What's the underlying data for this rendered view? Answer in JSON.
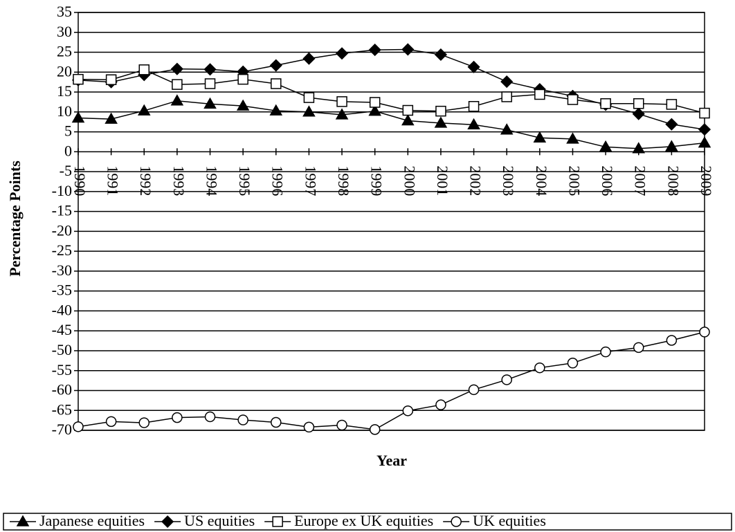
{
  "chart_data": {
    "type": "line",
    "x_label": "Year",
    "y_label": "Percentage Points",
    "categories": [
      "1990",
      "1991",
      "1992",
      "1993",
      "1994",
      "1995",
      "1996",
      "1997",
      "1998",
      "1999",
      "2000",
      "2001",
      "2002",
      "2003",
      "2004",
      "2005",
      "2006",
      "2007",
      "2008",
      "2009"
    ],
    "series": [
      {
        "name": "Japanese equities",
        "color": "#000000",
        "marker": "triangle",
        "marker_fill": "#000000",
        "values": [
          8.5,
          8.2,
          10.3,
          12.8,
          12,
          11.5,
          10.3,
          10,
          9.3,
          10.2,
          7.8,
          7.2,
          6.8,
          5.5,
          3.5,
          3.2,
          1.2,
          0.8,
          1.3,
          2.2
        ]
      },
      {
        "name": "US equities",
        "color": "#000000",
        "marker": "diamond",
        "marker_fill": "#000000",
        "values": [
          18,
          17.5,
          19.3,
          20.8,
          20.7,
          20.1,
          21.7,
          23.4,
          24.7,
          25.6,
          25.7,
          24.4,
          21.3,
          17.6,
          15.7,
          14,
          11.8,
          9.5,
          6.9,
          5.6
        ]
      },
      {
        "name": "Europe ex UK equities",
        "color": "#000000",
        "marker": "square",
        "marker_fill": "#ffffff",
        "values": [
          18.2,
          18.1,
          20.6,
          16.9,
          17.1,
          18.2,
          17.1,
          13.6,
          12.6,
          12.4,
          10.4,
          10.2,
          11.4,
          13.8,
          14.4,
          13.1,
          12.1,
          12.1,
          11.9,
          9.7
        ]
      },
      {
        "name": "UK equities",
        "color": "#000000",
        "marker": "circle",
        "marker_fill": "#ffffff",
        "values": [
          -69.1,
          -67.8,
          -68.1,
          -66.8,
          -66.6,
          -67.4,
          -68,
          -69.2,
          -68.7,
          -69.8,
          -65.1,
          -63.6,
          -59.8,
          -57.3,
          -54.3,
          -53.1,
          -50.3,
          -49.2,
          -47.4,
          -45.3
        ]
      }
    ],
    "ylim": [
      -70,
      35
    ],
    "yticks": [
      35,
      30,
      25,
      20,
      15,
      10,
      5,
      0,
      -5,
      -10,
      -15,
      -20,
      -25,
      -30,
      -35,
      -40,
      -45,
      -50,
      -55,
      -60,
      -65,
      -70
    ],
    "grid": true,
    "legend": "bottom"
  }
}
